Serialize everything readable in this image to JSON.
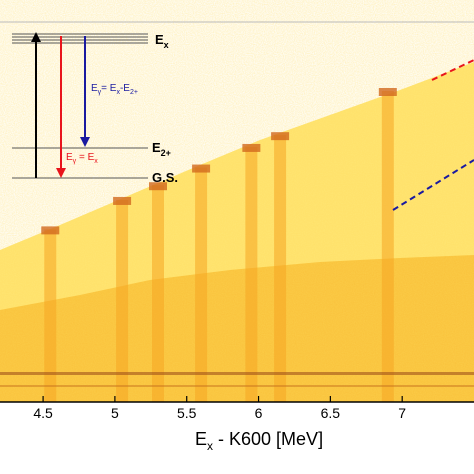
{
  "chart_data": {
    "type": "heatmap",
    "title": "",
    "xlabel": "E",
    "xlabel_sub": "x",
    "xlabel_rest": " - K600 [MeV]",
    "xlim": [
      4.2,
      7.5
    ],
    "x_ticks": [
      4.5,
      5,
      5.5,
      6,
      6.5,
      7
    ],
    "x_tick_labels": [
      "4.5",
      "5",
      "5.5",
      "6",
      "6.5",
      "7"
    ],
    "ylabel": "",
    "colorscale": [
      "#ffffff",
      "#fff6b0",
      "#ffe04a",
      "#f5a623",
      "#d2691e",
      "#a0521a"
    ],
    "peak_positions": [
      4.55,
      5.05,
      5.3,
      5.6,
      5.95,
      6.15,
      6.9
    ]
  },
  "inset": {
    "levels": {
      "ex": {
        "main": "E",
        "sub": "x"
      },
      "e2": {
        "main": "E",
        "sub": "2+"
      },
      "gs": "G.S."
    },
    "transitions": {
      "direct": {
        "pre": "E",
        "sub": "γ",
        "post": " = E",
        "sub2": "x",
        "color": "#e8141c"
      },
      "cascade": {
        "pre": "E",
        "sub": "γ",
        "post": "= E",
        "sub2": "x",
        "mid": "-E",
        "sub3": "2+",
        "color": "#1a1aa0"
      }
    },
    "arrow_colors": {
      "excite": "#000000",
      "direct": "#e8141c",
      "cascade": "#1a1aa0"
    }
  },
  "guide_lines": {
    "upper_color": "#e8141c",
    "lower_color": "#1a1aa0"
  }
}
